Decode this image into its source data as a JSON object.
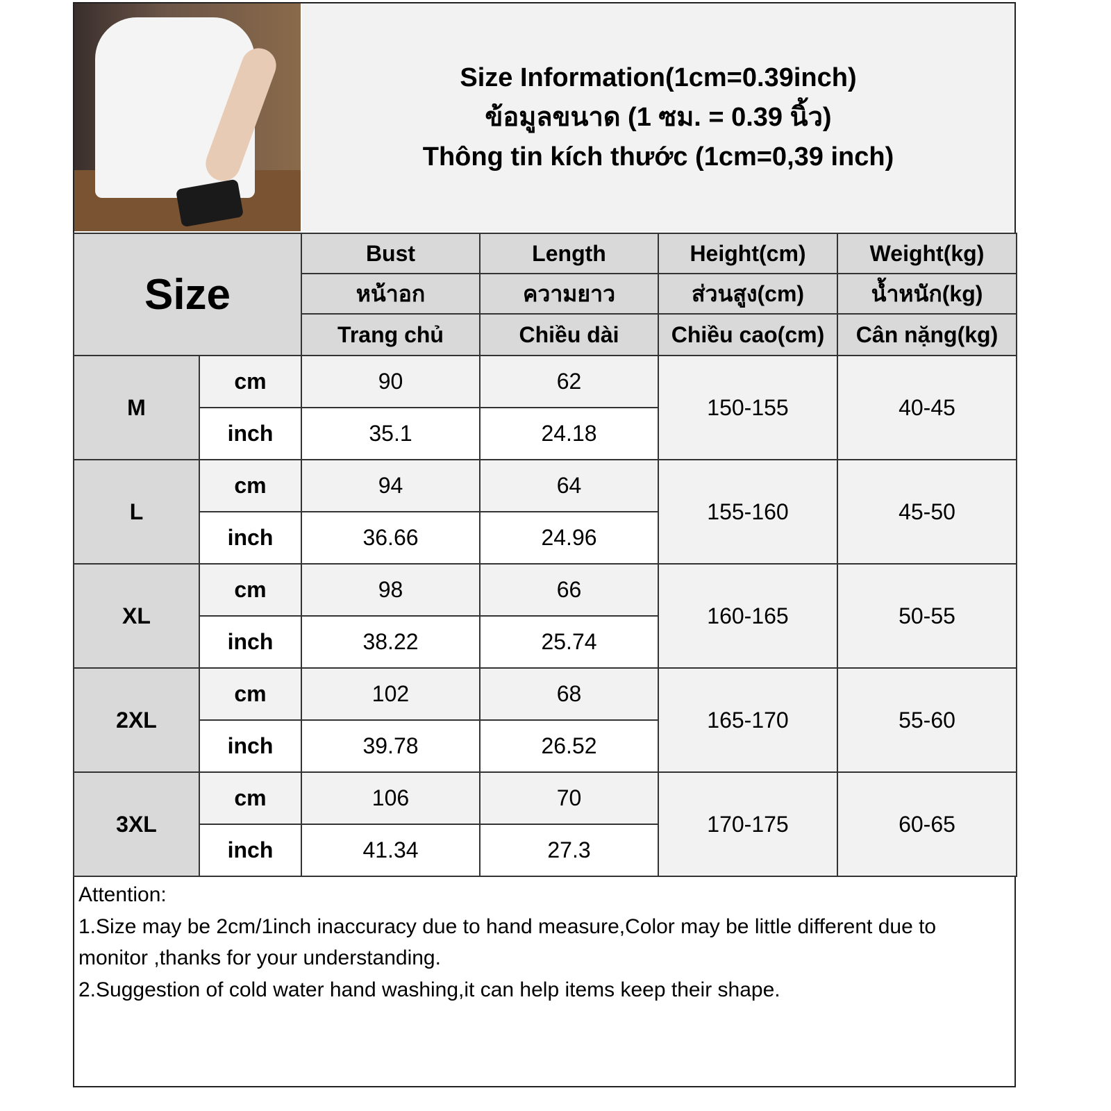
{
  "title": {
    "en": "Size Information(1cm=0.39inch)",
    "th": "ข้อมูลขนาด (1 ซม. = 0.39 นิ้ว)",
    "vi": "Thông tin kích thước (1cm=0,39 inch)"
  },
  "header": {
    "size_label": "Size",
    "columns": [
      {
        "en": "Bust",
        "th": "หน้าอก",
        "vi": "Trang chủ"
      },
      {
        "en": "Length",
        "th": "ความยาว",
        "vi": "Chiều dài"
      },
      {
        "en": "Height(cm)",
        "th": "ส่วนสูง(cm)",
        "vi": "Chiều cao(cm)"
      },
      {
        "en": "Weight(kg)",
        "th": "น้ำหนัก(kg)",
        "vi": "Cân nặng(kg)"
      }
    ]
  },
  "units": {
    "cm": "cm",
    "inch": "inch"
  },
  "rows": [
    {
      "size": "M",
      "bust_cm": "90",
      "bust_in": "35.1",
      "length_cm": "62",
      "length_in": "24.18",
      "height": "150-155",
      "weight": "40-45"
    },
    {
      "size": "L",
      "bust_cm": "94",
      "bust_in": "36.66",
      "length_cm": "64",
      "length_in": "24.96",
      "height": "155-160",
      "weight": "45-50"
    },
    {
      "size": "XL",
      "bust_cm": "98",
      "bust_in": "38.22",
      "length_cm": "66",
      "length_in": "25.74",
      "height": "160-165",
      "weight": "50-55"
    },
    {
      "size": "2XL",
      "bust_cm": "102",
      "bust_in": "39.78",
      "length_cm": "68",
      "length_in": "26.52",
      "height": "165-170",
      "weight": "55-60"
    },
    {
      "size": "3XL",
      "bust_cm": "106",
      "bust_in": "41.34",
      "length_cm": "70",
      "length_in": "27.3",
      "height": "170-175",
      "weight": "60-65"
    }
  ],
  "attention": {
    "heading": "Attention:",
    "line1": "1.Size may be 2cm/1inch inaccuracy due to hand measure,Color may be little different due to monitor ,thanks for your understanding.",
    "line2": "2.Suggestion of cold water hand washing,it can help items keep their shape."
  },
  "colors": {
    "header_bg": "#d9d9d9",
    "title_bg": "#f2f2f2",
    "cm_row_bg": "#f2f2f2",
    "inch_row_bg": "#ffffff",
    "border": "#333333"
  }
}
